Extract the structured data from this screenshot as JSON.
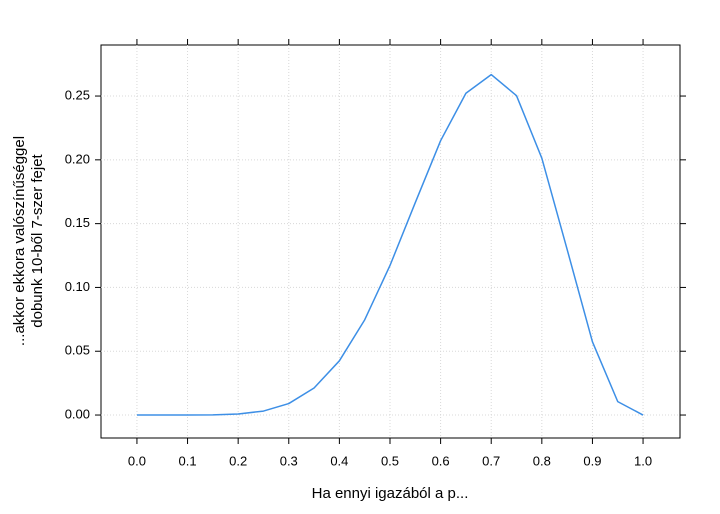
{
  "chart_data": {
    "type": "line",
    "xlabel": "Ha ennyi igazából a p...",
    "ylabel": [
      "...akkor ekkora valószínűséggel",
      "dobunk 10-ből 7-szer fejet"
    ],
    "x": [
      0,
      0.05,
      0.1,
      0.15,
      0.2,
      0.25,
      0.3,
      0.35,
      0.4,
      0.45,
      0.5,
      0.55,
      0.6,
      0.65,
      0.7,
      0.75,
      0.8,
      0.85,
      0.9,
      0.95,
      1.0
    ],
    "series": [
      {
        "color": "#3d8fe6",
        "values": [
          0,
          1e-07,
          9e-06,
          0.00013,
          0.00079,
          0.0031,
          0.009,
          0.0212,
          0.0425,
          0.0746,
          0.1172,
          0.1665,
          0.215,
          0.2522,
          0.2668,
          0.2503,
          0.2013,
          0.1298,
          0.0574,
          0.0105,
          0
        ]
      }
    ],
    "xlim": [
      -0.071,
      1.073
    ],
    "ylim": [
      -0.018,
      0.29
    ],
    "xticks": [
      {
        "value": 0,
        "label": "0.0"
      },
      {
        "value": 0.1,
        "label": "0.1"
      },
      {
        "value": 0.2,
        "label": "0.2"
      },
      {
        "value": 0.3,
        "label": "0.3"
      },
      {
        "value": 0.4,
        "label": "0.4"
      },
      {
        "value": 0.5,
        "label": "0.5"
      },
      {
        "value": 0.6,
        "label": "0.6"
      },
      {
        "value": 0.7,
        "label": "0.7"
      },
      {
        "value": 0.8,
        "label": "0.8"
      },
      {
        "value": 0.9,
        "label": "0.9"
      },
      {
        "value": 1.0,
        "label": "1.0"
      }
    ],
    "yticks": [
      {
        "value": 0,
        "label": "0.00"
      },
      {
        "value": 0.05,
        "label": "0.05"
      },
      {
        "value": 0.1,
        "label": "0.10"
      },
      {
        "value": 0.15,
        "label": "0.15"
      },
      {
        "value": 0.2,
        "label": "0.20"
      },
      {
        "value": 0.25,
        "label": "0.25"
      }
    ],
    "grid": true
  }
}
